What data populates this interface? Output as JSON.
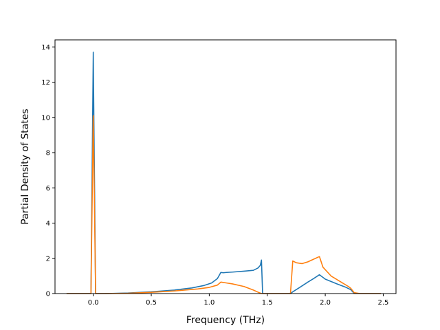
{
  "chart_data": {
    "type": "line",
    "title": "",
    "xlabel": "Frequency (THz)",
    "ylabel": "Partial Density of States",
    "xlim": [
      -0.33,
      2.61
    ],
    "ylim": [
      0,
      14.4
    ],
    "xticks": [
      0.0,
      0.5,
      1.0,
      1.5,
      2.0,
      2.5
    ],
    "xtick_labels": [
      "0.0",
      "0.5",
      "1.0",
      "1.5",
      "2.0",
      "2.5"
    ],
    "yticks": [
      0,
      2,
      4,
      6,
      8,
      10,
      12,
      14
    ],
    "ytick_labels": [
      "0",
      "2",
      "4",
      "6",
      "8",
      "10",
      "12",
      "14"
    ],
    "grid": false,
    "legend": "none",
    "series": [
      {
        "color": "#1f77b4",
        "x": [
          -0.23,
          -0.02,
          0.0,
          0.005,
          0.02,
          0.1,
          0.3,
          0.5,
          0.7,
          0.85,
          0.95,
          1.02,
          1.07,
          1.1,
          1.12,
          1.15,
          1.2,
          1.3,
          1.38,
          1.42,
          1.44,
          1.45,
          1.46,
          1.5,
          1.7,
          1.72,
          1.78,
          1.85,
          1.9,
          1.95,
          2.0,
          2.1,
          2.18,
          2.22,
          2.25,
          2.3,
          2.48
        ],
        "y": [
          0,
          0,
          13.7,
          10.0,
          0,
          0.0,
          0.03,
          0.1,
          0.2,
          0.32,
          0.45,
          0.6,
          0.85,
          1.2,
          1.18,
          1.2,
          1.22,
          1.27,
          1.32,
          1.45,
          1.6,
          1.9,
          0,
          0,
          0,
          0.1,
          0.35,
          0.65,
          0.85,
          1.07,
          0.82,
          0.55,
          0.35,
          0.22,
          0.0,
          0,
          0
        ]
      },
      {
        "color": "#ff7f0e",
        "x": [
          -0.23,
          -0.02,
          0.0,
          0.02,
          0.1,
          0.3,
          0.5,
          0.7,
          0.9,
          1.0,
          1.07,
          1.1,
          1.15,
          1.2,
          1.3,
          1.38,
          1.42,
          1.45,
          1.5,
          1.7,
          1.72,
          1.75,
          1.8,
          1.85,
          1.9,
          1.95,
          1.98,
          2.05,
          2.15,
          2.2,
          2.22,
          2.25,
          2.3,
          2.48
        ],
        "y": [
          0,
          0,
          10.1,
          0,
          0,
          0.02,
          0.07,
          0.15,
          0.26,
          0.35,
          0.48,
          0.65,
          0.6,
          0.55,
          0.4,
          0.2,
          0.08,
          0.0,
          0,
          0.0,
          1.85,
          1.75,
          1.7,
          1.8,
          1.95,
          2.1,
          1.5,
          1.0,
          0.6,
          0.4,
          0.3,
          0.05,
          0,
          0
        ]
      }
    ]
  }
}
